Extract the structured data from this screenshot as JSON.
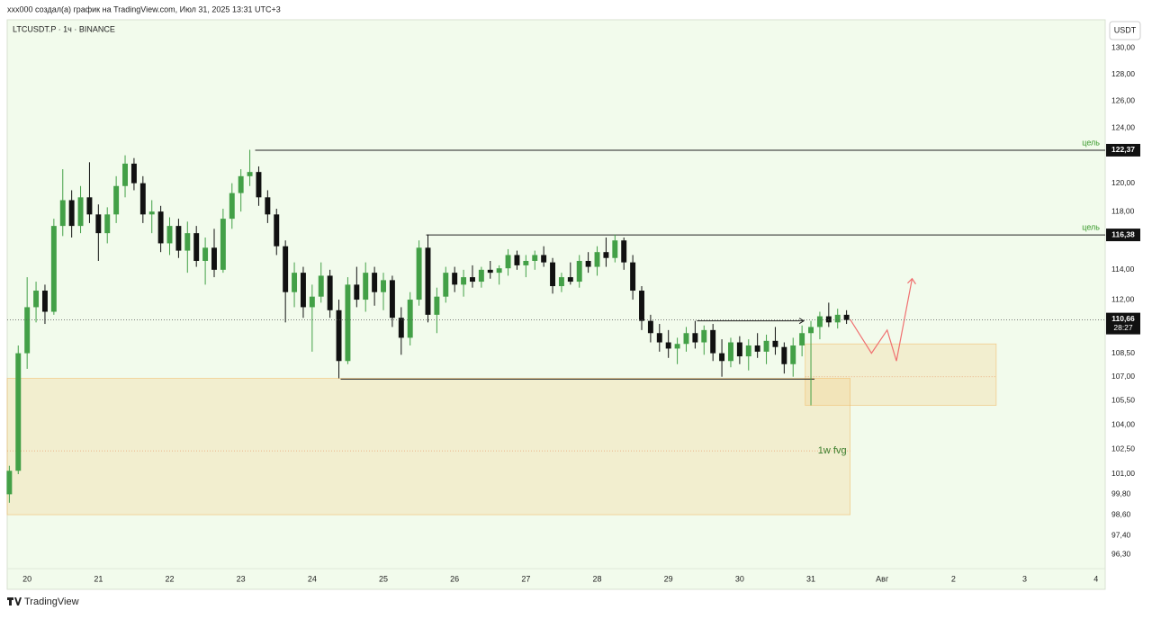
{
  "header": "xxx000 создал(а) график на TradingView.com, Июл 31, 2025 13:31 UTC+3",
  "footer": "TradingView",
  "chart_data": {
    "type": "candlestick",
    "title": "LTCUSDT.P · 1ч · BINANCE",
    "currency": "USDT",
    "log_scale": true,
    "grid": false,
    "background": "#f2fbec",
    "up_color": "#43a047",
    "down_color": "#111111",
    "x": [
      19.75,
      19.875,
      20,
      20.125,
      20.25,
      20.375,
      20.5,
      20.625,
      20.75,
      20.875,
      21,
      21.125,
      21.25,
      21.375,
      21.5,
      21.625,
      21.75,
      21.875,
      22,
      22.125,
      22.25,
      22.375,
      22.5,
      22.625,
      22.75,
      22.875,
      23,
      23.125,
      23.25,
      23.375,
      23.5,
      23.625,
      23.75,
      23.875,
      24,
      24.125,
      24.25,
      24.375,
      24.5,
      24.625,
      24.75,
      24.875,
      25,
      25.125,
      25.25,
      25.375,
      25.5,
      25.625,
      25.75,
      25.875,
      26,
      26.125,
      26.25,
      26.375,
      26.5,
      26.625,
      26.75,
      26.875,
      27,
      27.125,
      27.25,
      27.375,
      27.5,
      27.625,
      27.75,
      27.875,
      28,
      28.125,
      28.25,
      28.375,
      28.5,
      28.625,
      28.75,
      28.875,
      29,
      29.125,
      29.25,
      29.375,
      29.5,
      29.625,
      29.75,
      29.875,
      30,
      30.125,
      30.25,
      30.375,
      30.5,
      30.625,
      30.75,
      30.875,
      31,
      31.125,
      31.25,
      31.375,
      31.5
    ],
    "open": [
      99.8,
      101.2,
      108.5,
      111.5,
      112.6,
      111.2,
      117,
      118.8,
      117,
      119,
      117.8,
      116.5,
      117.8,
      119.8,
      121.4,
      120,
      117.8,
      118,
      115.8,
      117,
      115.3,
      116.5,
      114.6,
      115.5,
      114,
      117.5,
      119.3,
      120.5,
      120.8,
      119,
      117.8,
      115.6,
      112.5,
      113.8,
      111.5,
      112.2,
      113.6,
      111.3,
      108,
      113,
      112,
      113.8,
      112.5,
      113.3,
      110.8,
      109.5,
      112,
      115.5,
      111,
      112.2,
      113.8,
      113,
      113.5,
      113.2,
      114,
      113.8,
      114.1,
      115,
      114.3,
      114.6,
      115,
      114.5,
      112.9,
      113.5,
      113.2,
      114.6,
      114.2,
      115.2,
      114.8,
      116,
      114.5,
      112.6,
      110.6,
      109.8,
      109.2,
      108.8,
      109.1,
      109.8,
      109.2,
      110,
      108.5,
      108,
      109.2,
      108.3,
      109,
      108.6,
      109.3,
      108.9,
      107.8,
      109,
      109.8,
      110.2,
      110.9,
      110.5,
      111
    ],
    "high": [
      101.5,
      109,
      113.5,
      113.2,
      113,
      117.5,
      121,
      119.5,
      119.8,
      121.5,
      118.5,
      118.3,
      120.5,
      122,
      121.8,
      120.5,
      118.8,
      118.4,
      117.6,
      117.5,
      117.3,
      117,
      116.2,
      116.8,
      118.2,
      120,
      121,
      122.4,
      121.2,
      119.5,
      118.2,
      116,
      114.5,
      114.2,
      113,
      114.5,
      114,
      112,
      113.5,
      114.2,
      114.5,
      114.2,
      113.8,
      113.6,
      111.5,
      112.5,
      116,
      116.4,
      112.8,
      114.2,
      114.2,
      114,
      114.3,
      114.2,
      114.6,
      114.3,
      115.4,
      115.3,
      115,
      115.3,
      115.6,
      114.8,
      113.8,
      114.5,
      115,
      115.2,
      115.6,
      116.2,
      116.4,
      116.2,
      115,
      112.9,
      111,
      110.4,
      110,
      109.5,
      110.2,
      110.6,
      110.3,
      110.4,
      109.4,
      109.5,
      109.6,
      109.4,
      109.8,
      109.7,
      110.2,
      109.2,
      109.5,
      110.3,
      110.6,
      111.2,
      111.8,
      111.4,
      111.3
    ],
    "low": [
      99.3,
      101,
      107.5,
      110.5,
      110.4,
      111,
      116.3,
      116.2,
      116.5,
      117.2,
      114.6,
      115.8,
      117.2,
      119,
      119.5,
      117.2,
      116.5,
      115.2,
      115,
      114.8,
      113.8,
      114.2,
      113,
      113.5,
      113.8,
      116.8,
      118,
      119.8,
      118.4,
      117.2,
      115,
      110.5,
      111.5,
      110.8,
      108.6,
      111.8,
      110.8,
      106.9,
      107.8,
      111.5,
      111.2,
      111.6,
      111.3,
      110.2,
      108.4,
      109,
      111.6,
      110.5,
      109.8,
      111.8,
      112.5,
      112.2,
      112.8,
      112.8,
      113.4,
      113,
      113.6,
      114,
      113.5,
      114,
      114.2,
      112.4,
      112.5,
      113,
      112.8,
      113.8,
      113.6,
      114.2,
      114.5,
      114,
      112,
      110,
      109.2,
      108.6,
      108.2,
      107.8,
      108.6,
      108.8,
      108.4,
      108,
      107,
      107.6,
      107.8,
      107.4,
      108.2,
      107.8,
      108.4,
      107.2,
      107,
      108.3,
      105.2,
      109.4,
      110.2,
      110.1,
      110.4
    ],
    "close": [
      101.2,
      108.5,
      111.5,
      112.6,
      111.2,
      117,
      118.8,
      117,
      119,
      117.8,
      116.5,
      117.8,
      119.8,
      121.4,
      120,
      117.8,
      118,
      115.8,
      117,
      115.3,
      116.5,
      114.6,
      115.5,
      114,
      117.5,
      119.3,
      120.5,
      120.8,
      119,
      117.8,
      115.6,
      112.5,
      113.8,
      111.5,
      112.2,
      113.6,
      111.3,
      108,
      113,
      112,
      113.8,
      112.5,
      113.3,
      110.8,
      109.5,
      112,
      115.5,
      111,
      112.2,
      113.8,
      113,
      113.5,
      113.2,
      114,
      113.8,
      114.1,
      115,
      114.3,
      114.6,
      115,
      114.5,
      112.9,
      113.5,
      113.2,
      114.6,
      114.2,
      115.2,
      114.8,
      116,
      114.5,
      112.6,
      110.6,
      109.8,
      109.2,
      108.8,
      109.1,
      109.8,
      109.2,
      110,
      108.5,
      108,
      109.2,
      108.3,
      109,
      108.6,
      109.3,
      108.9,
      107.8,
      109,
      109.8,
      110.2,
      110.9,
      110.5,
      111,
      110.66
    ],
    "xlim": [
      19.72,
      35.13
    ],
    "xticks": [
      20,
      21,
      22,
      23,
      24,
      25,
      26,
      27,
      28,
      29,
      30,
      31,
      {
        "value": 32,
        "label": "Авг"
      },
      {
        "value": 33,
        "label": "2"
      },
      {
        "value": 34,
        "label": "3"
      },
      {
        "value": 35,
        "label": "4"
      }
    ],
    "ylim": [
      95.5,
      132.2
    ],
    "yticks": [
      {
        "value": 130,
        "label": "130,00"
      },
      {
        "value": 128,
        "label": "128,00"
      },
      {
        "value": 126,
        "label": "126,00"
      },
      {
        "value": 124,
        "label": "124,00"
      },
      {
        "value": 120,
        "label": "120,00"
      },
      {
        "value": 118,
        "label": "118,00"
      },
      {
        "value": 114,
        "label": "114,00"
      },
      {
        "value": 112,
        "label": "112,00"
      },
      {
        "value": 108.5,
        "label": "108,50"
      },
      {
        "value": 107,
        "label": "107,00"
      },
      {
        "value": 105.5,
        "label": "105,50"
      },
      {
        "value": 104,
        "label": "104,00"
      },
      {
        "value": 102.5,
        "label": "102,50"
      },
      {
        "value": 101,
        "label": "101,00"
      },
      {
        "value": 99.8,
        "label": "99,80"
      },
      {
        "value": 98.6,
        "label": "98,60"
      },
      {
        "value": 97.4,
        "label": "97,40"
      },
      {
        "value": 96.3,
        "label": "96,30"
      }
    ],
    "last_price": {
      "value": 110.66,
      "label": "110,66",
      "countdown": "28:27"
    },
    "targets": [
      {
        "value": 122.37,
        "label": "122,37",
        "text": "цель",
        "from": 23.2
      },
      {
        "value": 116.38,
        "label": "116,38",
        "text": "цель",
        "from": 25.6
      }
    ],
    "support": {
      "value": 106.85,
      "from": 24.4,
      "to": 31.05
    },
    "range_arrow": {
      "value": 110.6,
      "from": 29.4,
      "to": 30.9
    },
    "zones": [
      {
        "top": 109.1,
        "bottom": 105.2,
        "mid": 107,
        "from": 30.92,
        "to": 33.6
      },
      {
        "top": 106.9,
        "bottom": 98.6,
        "mid": 102.4,
        "from": 19.72,
        "to": 31.55,
        "label": "1w fvg"
      }
    ],
    "projection": {
      "color": "#f07070",
      "x": [
        31.55,
        31.85,
        32.07,
        32.2,
        32.42
      ],
      "y": [
        110.7,
        108.5,
        110,
        108,
        113.4
      ]
    }
  }
}
